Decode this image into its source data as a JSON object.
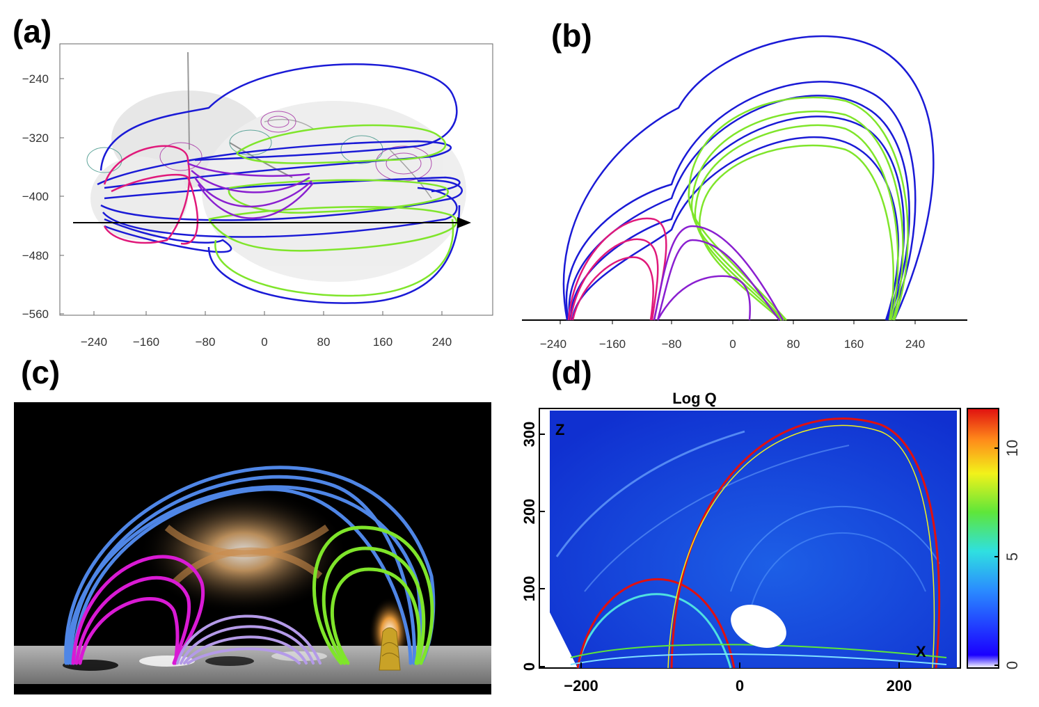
{
  "panels": {
    "a": {
      "label": "(a)",
      "x_ticks": [
        "−240",
        "−160",
        "−80",
        "0",
        "80",
        "160",
        "240"
      ],
      "y_ticks": [
        "−240",
        "−320",
        "−400",
        "−480",
        "−560"
      ]
    },
    "b": {
      "label": "(b)",
      "x_ticks": [
        "−240",
        "−160",
        "−80",
        "0",
        "80",
        "160",
        "240"
      ]
    },
    "c": {
      "label": "(c)"
    },
    "d": {
      "label": "(d)",
      "title": "Log Q",
      "x_ticks": [
        "−200",
        "0",
        "200"
      ],
      "y_ticks": [
        "0",
        "100",
        "200",
        "300"
      ],
      "axis_z": "Z",
      "axis_x": "X",
      "colorbar_ticks": [
        "0",
        "5",
        "10"
      ]
    }
  },
  "colors": {
    "blue": "#1a1ad6",
    "green": "#7fe52a",
    "magenta": "#e0197a",
    "purple": "#8a1fd0"
  },
  "chart_data": [
    {
      "type": "line",
      "panel": "a",
      "title": "",
      "xlabel": "",
      "ylabel": "",
      "xlim": [
        -280,
        290
      ],
      "ylim": [
        -565,
        -190
      ],
      "series": [
        {
          "name": "blue field lines"
        },
        {
          "name": "green field lines"
        },
        {
          "name": "magenta field lines"
        },
        {
          "name": "purple field lines"
        }
      ]
    },
    {
      "type": "line",
      "panel": "b",
      "title": "",
      "xlabel": "",
      "ylabel": "",
      "xlim": [
        -280,
        290
      ],
      "series": [
        {
          "name": "blue field lines"
        },
        {
          "name": "green field lines"
        },
        {
          "name": "magenta field lines"
        },
        {
          "name": "purple field lines"
        }
      ]
    },
    {
      "type": "heatmap",
      "panel": "d",
      "title": "Log Q",
      "xlabel": "X",
      "ylabel": "Z",
      "xlim": [
        -250,
        265
      ],
      "ylim": [
        0,
        330
      ],
      "colorbar_range": [
        0,
        12
      ]
    }
  ]
}
